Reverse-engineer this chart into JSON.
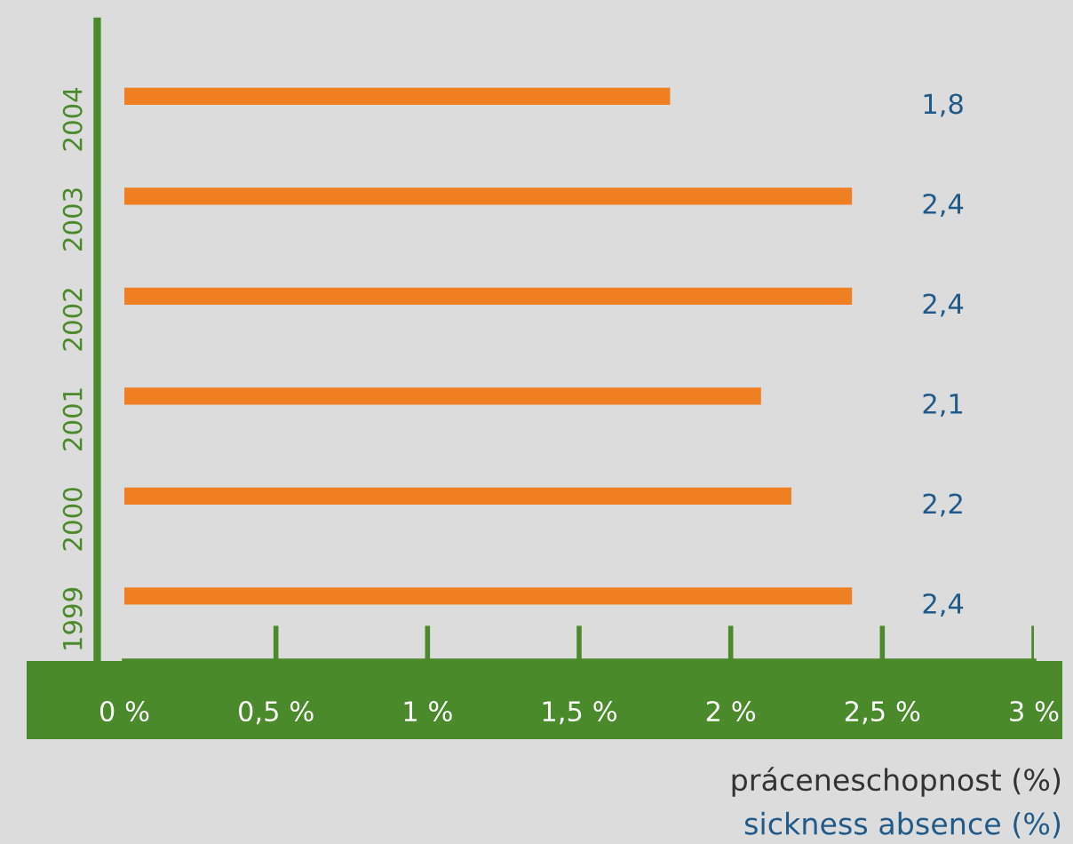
{
  "chart_data": {
    "type": "bar",
    "orientation": "horizontal",
    "categories": [
      "2004",
      "2003",
      "2002",
      "2001",
      "2000",
      "1999"
    ],
    "values": [
      1.8,
      2.4,
      2.4,
      2.1,
      2.2,
      2.4
    ],
    "value_labels": [
      "1,8",
      "2,4",
      "2,4",
      "2,1",
      "2,2",
      "2,4"
    ],
    "color": "#f07f22",
    "xlim": [
      0,
      3
    ],
    "xticks": [
      {
        "value": 0,
        "label": "0 %"
      },
      {
        "value": 0.5,
        "label": "0,5 %"
      },
      {
        "value": 1,
        "label": "1 %"
      },
      {
        "value": 1.5,
        "label": "1,5 %"
      },
      {
        "value": 2,
        "label": "2 %"
      },
      {
        "value": 2.5,
        "label": "2,5 %"
      },
      {
        "value": 3,
        "label": "3 %"
      }
    ],
    "xlabel": "práceneschopnost (%)",
    "annotations": [
      "sickness absence (%)"
    ],
    "grid": false,
    "legend": false
  }
}
